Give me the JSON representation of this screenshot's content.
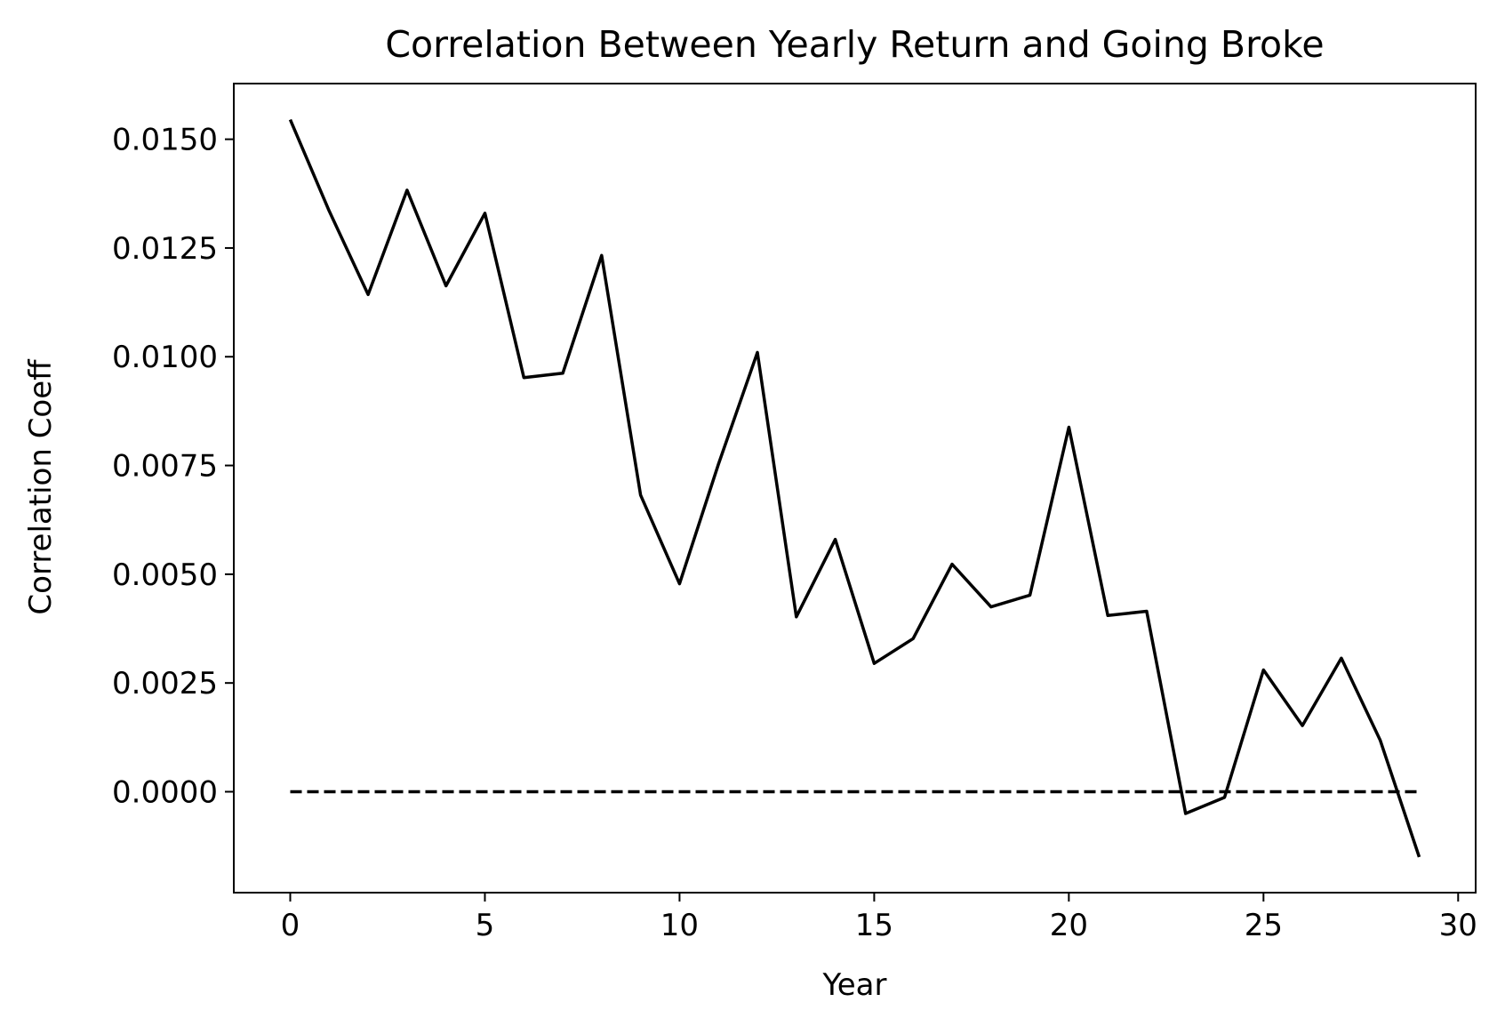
{
  "chart_data": {
    "type": "line",
    "title": "Correlation Between Yearly Return and Going Broke",
    "xlabel": "Year",
    "ylabel": "Correlation Coeff",
    "xlim": [
      -1.45,
      30.45
    ],
    "ylim": [
      -0.00232,
      0.01628
    ],
    "grid": false,
    "x_ticks": [
      0,
      5,
      10,
      15,
      20,
      25,
      30
    ],
    "x_tick_labels": [
      "0",
      "5",
      "10",
      "15",
      "20",
      "25",
      "30"
    ],
    "y_ticks": [
      0.0,
      0.0025,
      0.005,
      0.0075,
      0.01,
      0.0125,
      0.015
    ],
    "y_tick_labels": [
      "0.0000",
      "0.0025",
      "0.0050",
      "0.0075",
      "0.0100",
      "0.0125",
      "0.0150"
    ],
    "series": [
      {
        "style": "solid",
        "color": "#000000",
        "x": [
          0,
          1,
          2,
          3,
          4,
          5,
          6,
          7,
          8,
          9,
          10,
          11,
          12,
          13,
          14,
          15,
          16,
          17,
          18,
          19,
          20,
          21,
          22,
          23,
          24,
          25,
          26,
          27,
          28,
          29
        ],
        "values": [
          0.01545,
          0.01335,
          0.01143,
          0.01383,
          0.01163,
          0.0133,
          0.00952,
          0.00962,
          0.01233,
          0.00682,
          0.00478,
          0.00753,
          0.0101,
          0.00402,
          0.0058,
          0.00295,
          0.00352,
          0.00523,
          0.00425,
          0.00452,
          0.00838,
          0.00405,
          0.00415,
          -0.0005,
          -0.00013,
          0.0028,
          0.00152,
          0.00307,
          0.00118,
          -0.0015
        ]
      },
      {
        "style": "dashed",
        "color": "#000000",
        "x": [
          0,
          29
        ],
        "values": [
          0.0,
          0.0
        ]
      }
    ]
  }
}
